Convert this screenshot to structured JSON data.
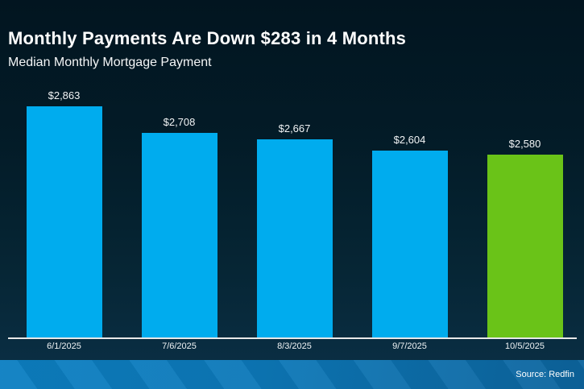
{
  "header": {
    "title": "Monthly Payments Are Down $283 in 4 Months",
    "subtitle": "Median Monthly Mortgage Payment"
  },
  "chart_data": {
    "type": "bar",
    "title": "Monthly Payments Are Down $283 in 4 Months",
    "subtitle": "Median Monthly Mortgage Payment",
    "categories": [
      "6/1/2025",
      "7/6/2025",
      "8/3/2025",
      "9/7/2025",
      "10/5/2025"
    ],
    "values": [
      2863,
      2708,
      2667,
      2604,
      2580
    ],
    "value_labels": [
      "$2,863",
      "$2,708",
      "$2,667",
      "$2,604",
      "$2,580"
    ],
    "bar_colors": [
      "#00ACEE",
      "#00ACEE",
      "#00ACEE",
      "#00ACEE",
      "#6AC318"
    ],
    "highlight_index": 4,
    "xlabel": "",
    "ylabel": "",
    "ylim": [
      1500,
      2900
    ],
    "grid": false,
    "legend": false,
    "data_labels": true
  },
  "footer": {
    "source_label": "Source: Redfin"
  },
  "colors": {
    "background_top": "#021520",
    "background_bottom": "#0b3047",
    "bar_blue": "#00ACEE",
    "bar_green": "#6AC318",
    "axis_line": "#e8e8e8",
    "text": "#ffffff",
    "footer_blue": "#0c7fc2"
  }
}
